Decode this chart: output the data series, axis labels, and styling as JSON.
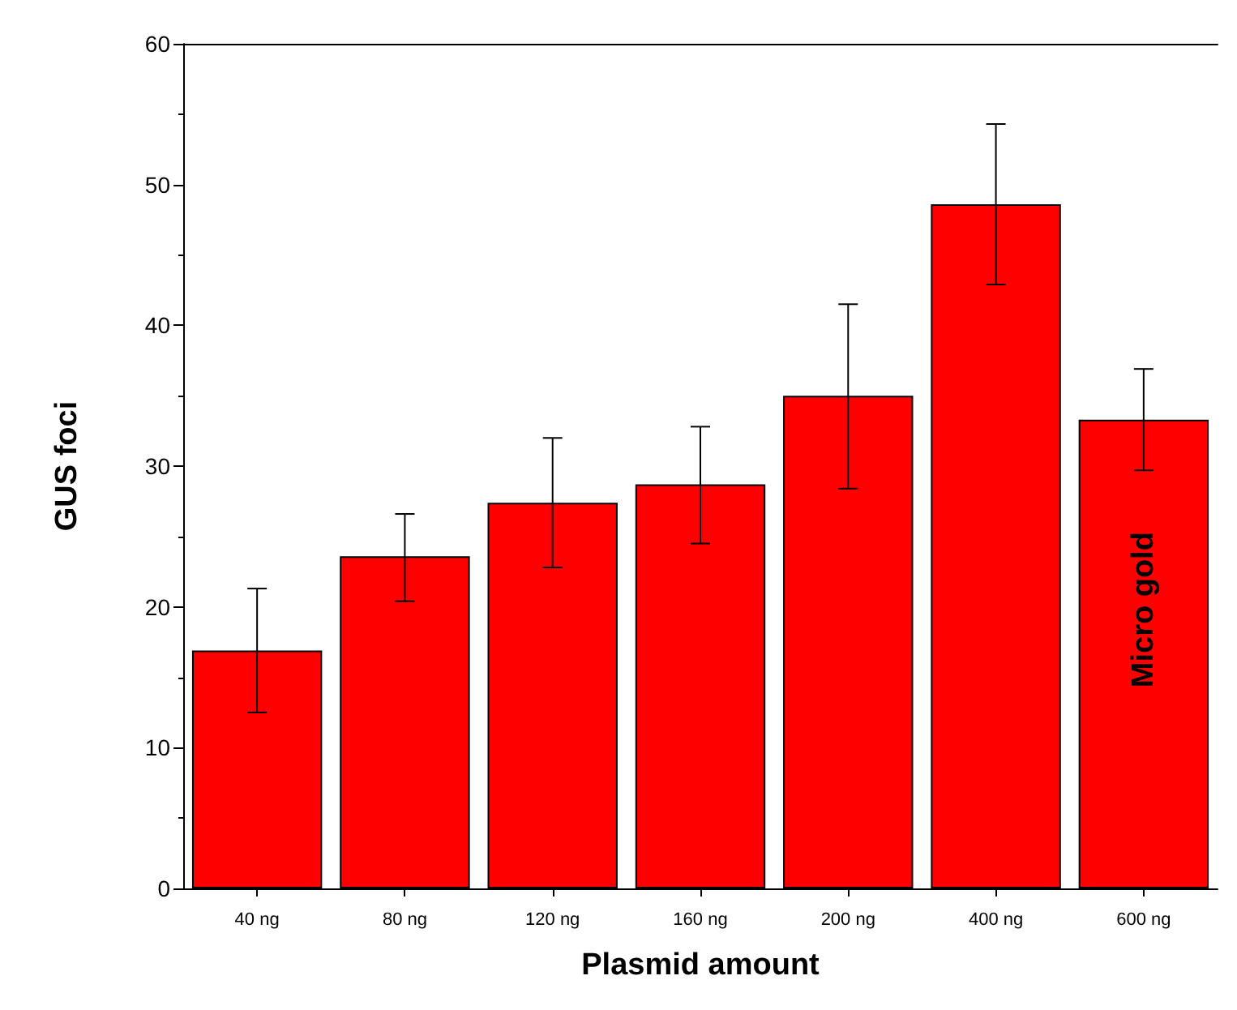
{
  "chart_data": {
    "type": "bar",
    "xlabel": "Plasmid amount",
    "ylabel": "GUS foci",
    "categories": [
      "40 ng",
      "80 ng",
      "120 ng",
      "160 ng",
      "200 ng",
      "400 ng",
      "600 ng"
    ],
    "values": [
      16.9,
      23.6,
      27.4,
      28.7,
      35.0,
      48.6,
      33.3
    ],
    "errors": [
      [
        12.5,
        21.3
      ],
      [
        20.4,
        26.6
      ],
      [
        22.8,
        32.0
      ],
      [
        24.5,
        32.8
      ],
      [
        28.4,
        41.5
      ],
      [
        42.9,
        54.3
      ],
      [
        29.7,
        36.9
      ]
    ],
    "color": "#ff0000",
    "ylim": [
      0,
      60
    ],
    "yticks": [
      0,
      10,
      20,
      30,
      40,
      50,
      60
    ],
    "grid": false,
    "annotations": [
      "Micro gold"
    ]
  }
}
